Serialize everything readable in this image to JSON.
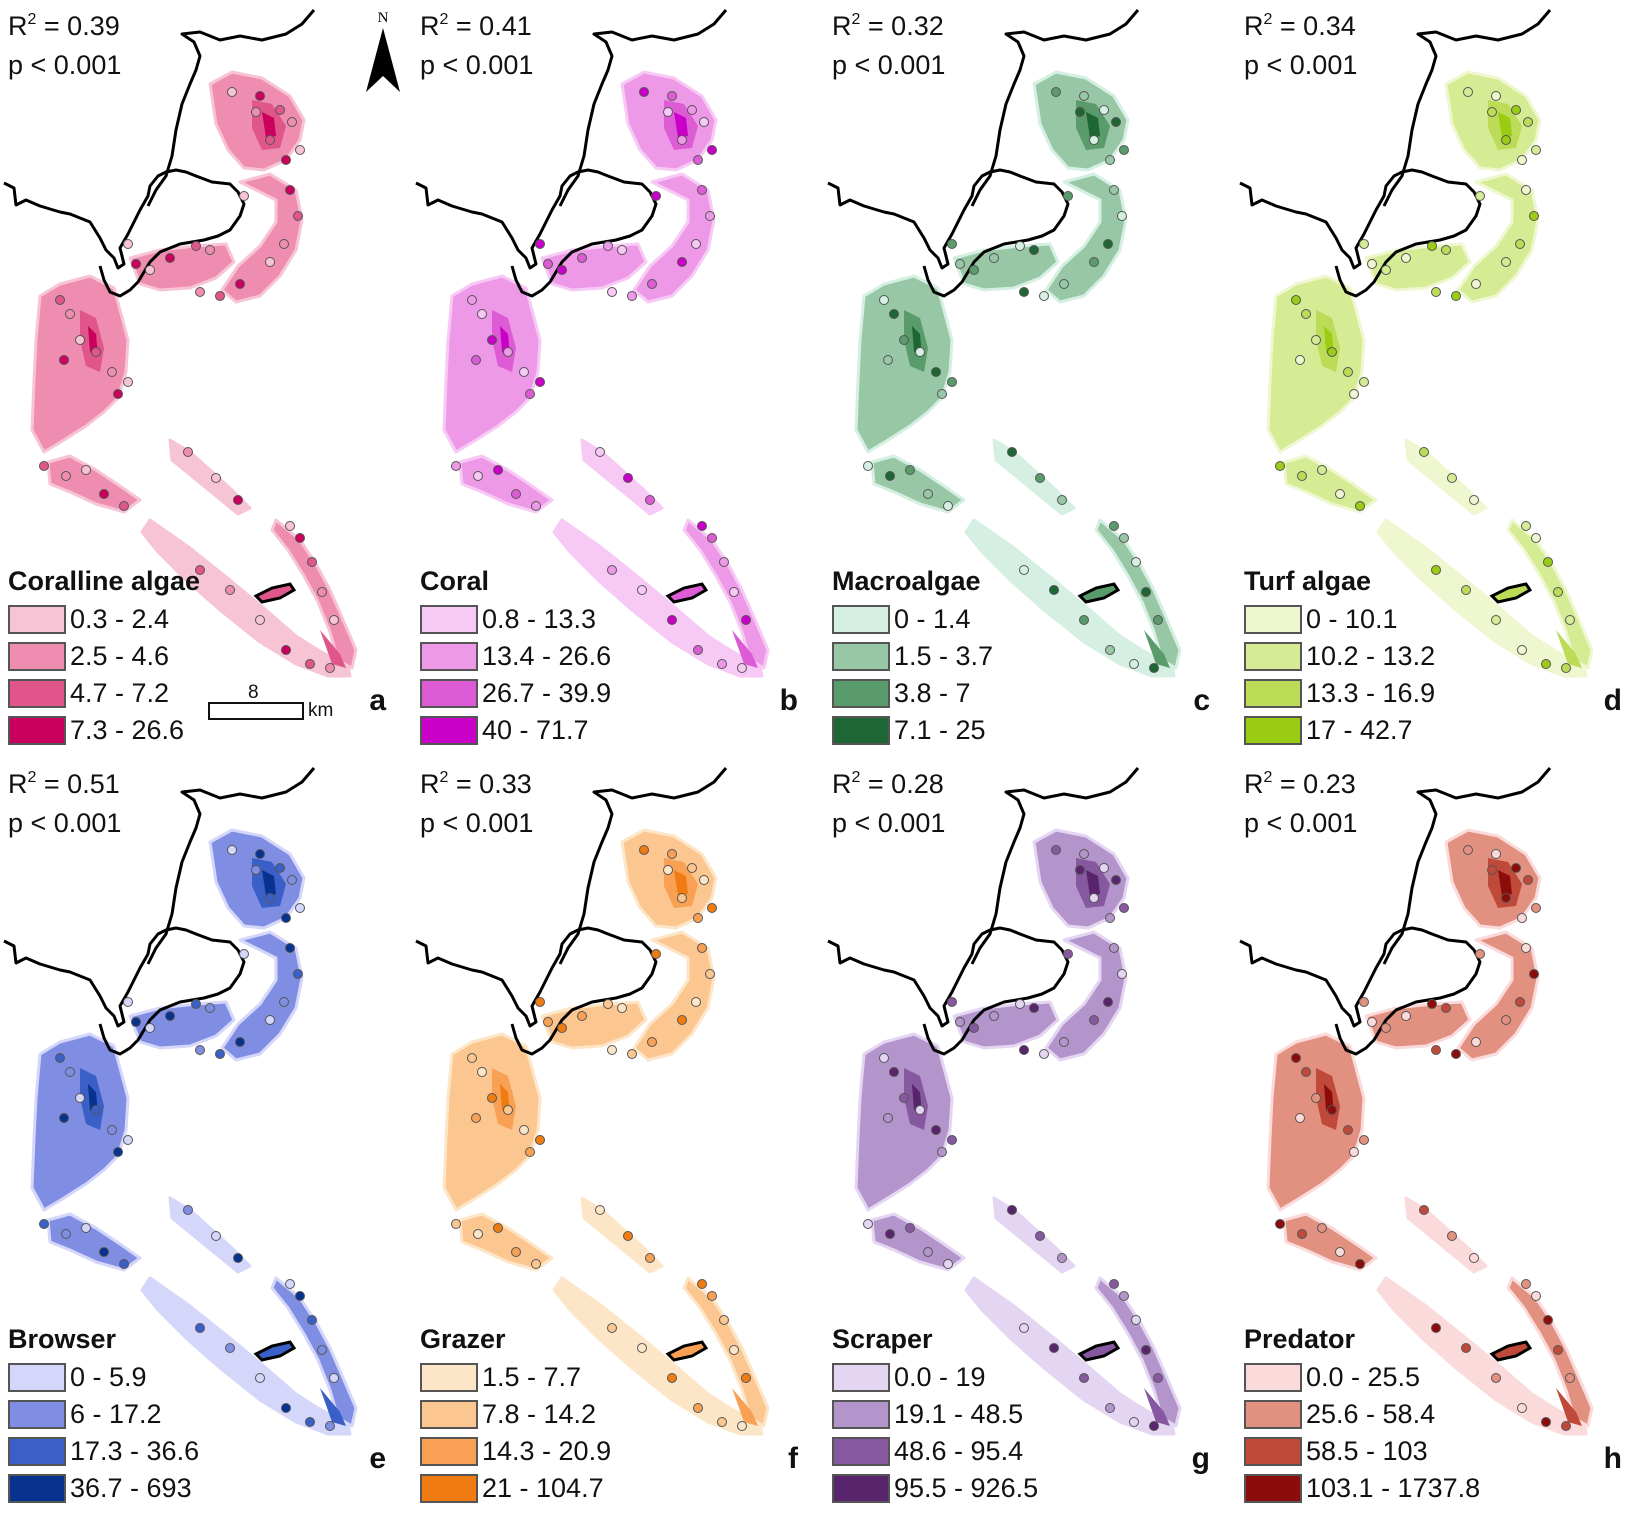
{
  "figure": {
    "panels": [
      {
        "letter": "a",
        "r2_label": "R",
        "r2_value": " = 0.39",
        "p_text": "p < 0.001",
        "legend_title": "Coralline algae",
        "classes": [
          {
            "label": "0.3 - 2.4",
            "color": "#f7c4d6"
          },
          {
            "label": "2.5 - 4.6",
            "color": "#ef8db0"
          },
          {
            "label": "4.7 - 7.2",
            "color": "#e0568a"
          },
          {
            "label": "7.3 - 26.6",
            "color": "#c9005d"
          }
        ]
      },
      {
        "letter": "b",
        "r2_label": "R",
        "r2_value": " = 0.41",
        "p_text": "p < 0.001",
        "legend_title": "Coral",
        "classes": [
          {
            "label": "0.8 - 13.3",
            "color": "#f7c9f5"
          },
          {
            "label": "13.4 - 26.6",
            "color": "#ee99e8"
          },
          {
            "label": "26.7 - 39.9",
            "color": "#dd5cd6"
          },
          {
            "label": "40 - 71.7",
            "color": "#c800c8"
          }
        ]
      },
      {
        "letter": "c",
        "r2_label": "R",
        "r2_value": " = 0.32",
        "p_text": "p < 0.001",
        "legend_title": "Macroalgae",
        "classes": [
          {
            "label": "0 - 1.4",
            "color": "#d5f0e2"
          },
          {
            "label": "1.5 - 3.7",
            "color": "#98c7a6"
          },
          {
            "label": "3.8 - 7",
            "color": "#5a9b6c"
          },
          {
            "label": "7.1 - 25",
            "color": "#1e6634"
          }
        ]
      },
      {
        "letter": "d",
        "r2_label": "R",
        "r2_value": " = 0.34",
        "p_text": "p < 0.001",
        "legend_title": "Turf algae",
        "classes": [
          {
            "label": "0 - 10.1",
            "color": "#eef7cf"
          },
          {
            "label": "10.2 - 13.2",
            "color": "#d6ec94"
          },
          {
            "label": "13.3 - 16.9",
            "color": "#bcdc58"
          },
          {
            "label": "17 - 42.7",
            "color": "#9acc14"
          }
        ]
      },
      {
        "letter": "e",
        "r2_label": "R",
        "r2_value": " = 0.51",
        "p_text": "p < 0.001",
        "legend_title": "Browser",
        "classes": [
          {
            "label": "0 - 5.9",
            "color": "#d4d6fa"
          },
          {
            "label": "6 - 17.2",
            "color": "#7f8ee2"
          },
          {
            "label": "17.3 - 36.6",
            "color": "#3a5fc6"
          },
          {
            "label": "36.7 - 693",
            "color": "#07338f"
          }
        ]
      },
      {
        "letter": "f",
        "r2_label": "R",
        "r2_value": " = 0.33",
        "p_text": "p < 0.001",
        "legend_title": "Grazer",
        "classes": [
          {
            "label": "1.5 - 7.7",
            "color": "#fde6c8"
          },
          {
            "label": "7.8 - 14.2",
            "color": "#fbc690"
          },
          {
            "label": "14.3 - 20.9",
            "color": "#f8a154"
          },
          {
            "label": "21 - 104.7",
            "color": "#f07b10"
          }
        ]
      },
      {
        "letter": "g",
        "r2_label": "R",
        "r2_value": " = 0.28",
        "p_text": "p < 0.001",
        "legend_title": "Scraper",
        "classes": [
          {
            "label": "0.0 - 19",
            "color": "#e4d6f2"
          },
          {
            "label": "19.1 - 48.5",
            "color": "#b395cc"
          },
          {
            "label": "48.6 - 95.4",
            "color": "#86589f"
          },
          {
            "label": "95.5 - 926.5",
            "color": "#58246c"
          }
        ]
      },
      {
        "letter": "h",
        "r2_label": "R",
        "r2_value": " = 0.23",
        "p_text": "p < 0.001",
        "legend_title": "Predator",
        "classes": [
          {
            "label": "0.0 - 25.5",
            "color": "#fadada"
          },
          {
            "label": "25.6 - 58.4",
            "color": "#e29080"
          },
          {
            "label": "58.5 - 103",
            "color": "#c04a3a"
          },
          {
            "label": "103.1 - 1737.8",
            "color": "#8c0c0c"
          }
        ]
      }
    ],
    "north_label": "N",
    "scale": {
      "value": "8",
      "unit": "km"
    },
    "icons": {
      "north": "north-arrow-icon"
    }
  }
}
